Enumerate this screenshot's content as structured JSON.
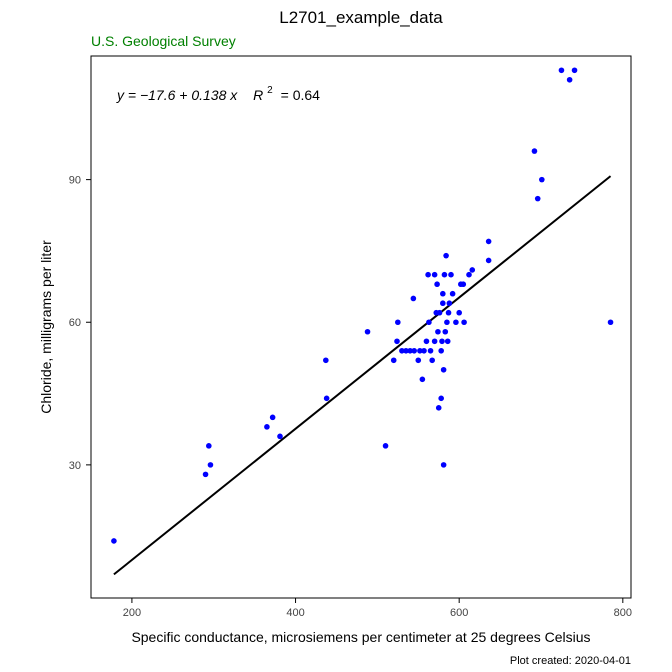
{
  "chart_data": {
    "type": "scatter",
    "title": "L2701_example_data",
    "subtitle": "U.S. Geological Survey",
    "xlabel": "Specific conductance, microsiemens per centimeter at 25 degrees Celsius",
    "ylabel": "Chloride, milligrams per liter",
    "caption": "Plot created: 2020-04-01",
    "xlim": [
      150,
      810
    ],
    "ylim": [
      2,
      116
    ],
    "xticks": [
      200,
      400,
      600,
      800
    ],
    "yticks": [
      30,
      60,
      90
    ],
    "grid": false,
    "colors": {
      "points": "#0000ff",
      "line": "#000000",
      "subtitle": "#008000"
    },
    "equation": {
      "prefix": "y = −17.6 + 0.138 x",
      "r2_label": "R",
      "r2_exp": "2",
      "r2_value": "= 0.64"
    },
    "fit": {
      "intercept": -17.6,
      "slope": 0.138,
      "x_range": [
        178,
        785
      ]
    },
    "points": [
      [
        178,
        14
      ],
      [
        290,
        28
      ],
      [
        294,
        34
      ],
      [
        296,
        30
      ],
      [
        365,
        38
      ],
      [
        372,
        40
      ],
      [
        381,
        36
      ],
      [
        437,
        52
      ],
      [
        438,
        44
      ],
      [
        488,
        58
      ],
      [
        510,
        34
      ],
      [
        520,
        52
      ],
      [
        524,
        56
      ],
      [
        525,
        60
      ],
      [
        530,
        54
      ],
      [
        535,
        54
      ],
      [
        540,
        54
      ],
      [
        544,
        65
      ],
      [
        545,
        54
      ],
      [
        550,
        52
      ],
      [
        552,
        54
      ],
      [
        555,
        48
      ],
      [
        557,
        54
      ],
      [
        560,
        56
      ],
      [
        562,
        70
      ],
      [
        563,
        60
      ],
      [
        565,
        54
      ],
      [
        567,
        52
      ],
      [
        570,
        56
      ],
      [
        570,
        70
      ],
      [
        572,
        62
      ],
      [
        573,
        68
      ],
      [
        574,
        58
      ],
      [
        575,
        42
      ],
      [
        576,
        62
      ],
      [
        578,
        44
      ],
      [
        578,
        54
      ],
      [
        579,
        56
      ],
      [
        580,
        64
      ],
      [
        580,
        66
      ],
      [
        581,
        50
      ],
      [
        581,
        30
      ],
      [
        582,
        70
      ],
      [
        583,
        58
      ],
      [
        584,
        74
      ],
      [
        585,
        60
      ],
      [
        586,
        56
      ],
      [
        587,
        62
      ],
      [
        588,
        64
      ],
      [
        590,
        70
      ],
      [
        592,
        66
      ],
      [
        596,
        60
      ],
      [
        600,
        62
      ],
      [
        602,
        68
      ],
      [
        605,
        68
      ],
      [
        606,
        60
      ],
      [
        612,
        70
      ],
      [
        616,
        71
      ],
      [
        636,
        77
      ],
      [
        636,
        73
      ],
      [
        692,
        96
      ],
      [
        696,
        86
      ],
      [
        701,
        90
      ],
      [
        725,
        113
      ],
      [
        735,
        111
      ],
      [
        741,
        113
      ],
      [
        785,
        60
      ]
    ]
  }
}
